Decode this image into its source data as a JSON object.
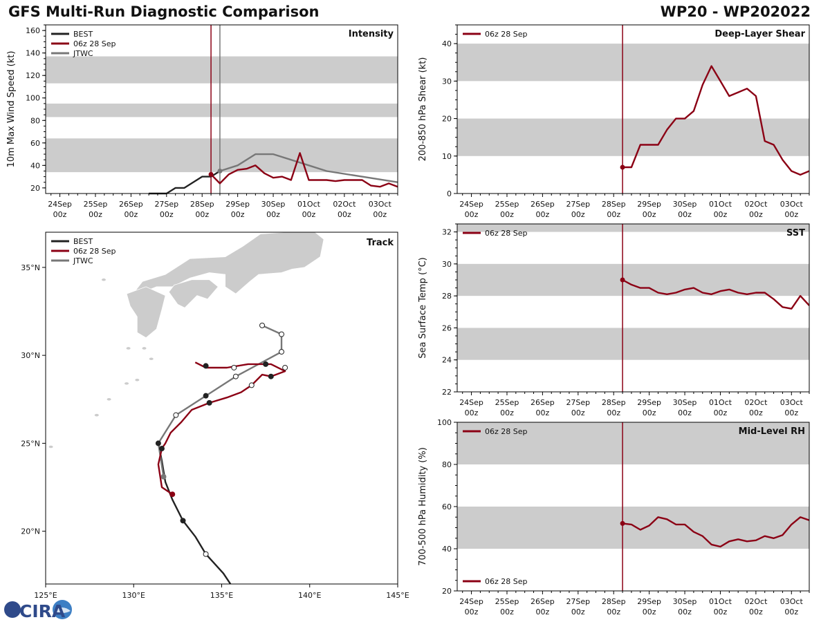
{
  "header": {
    "title": "GFS Multi-Run Diagnostic Comparison",
    "storm_id": "WP20 - WP202022"
  },
  "colors": {
    "best": "#222222",
    "run": "#8b0014",
    "jtwc": "#777777",
    "band": "#cccccc"
  },
  "legend": {
    "best": "BEST",
    "run": "06z 28 Sep",
    "jtwc": "JTWC"
  },
  "logo": {
    "text": "CIRA"
  },
  "time_axis": {
    "ticks": [
      {
        "day": "24Sep",
        "hour": "00z",
        "t": 0
      },
      {
        "day": "25Sep",
        "hour": "00z",
        "t": 1
      },
      {
        "day": "26Sep",
        "hour": "00z",
        "t": 2
      },
      {
        "day": "27Sep",
        "hour": "00z",
        "t": 3
      },
      {
        "day": "28Sep",
        "hour": "00z",
        "t": 4
      },
      {
        "day": "29Sep",
        "hour": "00z",
        "t": 5
      },
      {
        "day": "30Sep",
        "hour": "00z",
        "t": 6
      },
      {
        "day": "01Oct",
        "hour": "00z",
        "t": 7
      },
      {
        "day": "02Oct",
        "hour": "00z",
        "t": 8
      },
      {
        "day": "03Oct",
        "hour": "00z",
        "t": 9
      }
    ],
    "range_days": [
      -0.4,
      9.5
    ],
    "init_time_days": 4.25,
    "jtwc_time_days": 4.5
  },
  "chart_data": [
    {
      "id": "intensity",
      "type": "line",
      "title": "Intensity",
      "ylabel": "10m Max Wind Speed (kt)",
      "ylim": [
        15,
        165
      ],
      "yticks": [
        20,
        40,
        60,
        80,
        100,
        120,
        140,
        160
      ],
      "bands": [
        [
          34,
          64
        ],
        [
          83,
          95
        ],
        [
          113,
          137
        ]
      ],
      "series": [
        {
          "name": "BEST",
          "color_key": "best",
          "x": [
            2.5,
            3.0,
            3.25,
            3.5,
            4.0,
            4.25,
            4.5
          ],
          "y": [
            15,
            15,
            20,
            20,
            30,
            30,
            35
          ]
        },
        {
          "name": "06z 28 Sep",
          "color_key": "run",
          "x": [
            4.25,
            4.5,
            4.75,
            5.0,
            5.25,
            5.5,
            5.75,
            6.0,
            6.25,
            6.5,
            6.75,
            7.0,
            7.25,
            7.5,
            7.75,
            8.0,
            8.25,
            8.5,
            8.75,
            9.0,
            9.25,
            9.5
          ],
          "y": [
            32,
            24,
            32,
            36,
            37,
            40,
            33,
            29,
            30,
            27,
            51,
            27,
            27,
            27,
            26,
            27,
            27,
            27,
            22,
            21,
            24,
            21
          ]
        },
        {
          "name": "JTWC",
          "color_key": "jtwc",
          "x": [
            4.5,
            5.0,
            5.5,
            6.0,
            7.0,
            7.5,
            8.5,
            9.5
          ],
          "y": [
            35,
            40,
            50,
            50,
            40,
            35,
            30,
            25
          ]
        }
      ]
    },
    {
      "id": "track",
      "type": "track_map",
      "title": "Track",
      "lon_range": [
        125,
        145
      ],
      "lat_range": [
        17,
        37
      ],
      "lon_ticks": [
        125,
        130,
        135,
        140,
        145
      ],
      "lat_ticks": [
        20,
        25,
        30,
        35
      ],
      "lon_tick_labels": [
        "125°E",
        "130°E",
        "135°E",
        "140°E",
        "145°E"
      ],
      "lat_tick_labels": [
        "20°N",
        "25°N",
        "30°N",
        "35°N"
      ],
      "series": [
        {
          "name": "BEST",
          "color_key": "best",
          "lon": [
            135.5,
            135.1,
            134.1,
            133.5,
            132.8,
            132.2,
            131.8,
            131.6,
            131.4
          ],
          "lat": [
            17.0,
            17.6,
            18.7,
            19.7,
            20.6,
            21.8,
            22.8,
            24.0,
            25.0
          ],
          "markers_lon": [
            134.1,
            132.8,
            131.4
          ],
          "markers_lat": [
            18.7,
            20.6,
            25.0
          ],
          "markers_fill": [
            "open",
            "filled",
            "filled"
          ]
        },
        {
          "name": "06z 28 Sep",
          "color_key": "run",
          "lon": [
            132.2,
            131.6,
            131.4,
            131.6,
            131.8,
            132.1,
            132.7,
            133.3,
            134.3,
            135.3,
            136.1,
            136.7,
            137.3,
            137.8,
            138.6,
            137.8,
            136.5,
            135.3,
            134.1,
            133.5
          ],
          "lat": [
            22.1,
            22.5,
            23.8,
            24.7,
            25.0,
            25.6,
            26.2,
            26.9,
            27.3,
            27.6,
            27.9,
            28.3,
            28.9,
            28.8,
            29.1,
            29.5,
            29.5,
            29.3,
            29.3,
            29.6
          ],
          "markers_lon": [
            132.2,
            131.6,
            134.3,
            136.7,
            137.8,
            138.6,
            137.5,
            135.7,
            134.1
          ],
          "markers_lat": [
            22.1,
            24.7,
            27.3,
            28.3,
            28.8,
            29.3,
            29.5,
            29.3,
            29.4
          ],
          "markers_fill": [
            "run",
            "filled",
            "filled",
            "open",
            "filled",
            "open",
            "filled",
            "open",
            "filled"
          ]
        },
        {
          "name": "JTWC",
          "color_key": "jtwc",
          "lon": [
            131.7,
            131.4,
            132.4,
            134.1,
            135.8,
            138.4,
            138.4,
            137.3
          ],
          "lat": [
            23.1,
            25.0,
            26.6,
            27.7,
            28.8,
            30.2,
            31.2,
            31.7
          ],
          "markers_lon": [
            131.7,
            132.4,
            134.1,
            135.8,
            138.4,
            138.4,
            137.3
          ],
          "markers_lat": [
            23.1,
            26.6,
            27.7,
            28.8,
            30.2,
            31.2,
            31.7
          ],
          "markers_fill": [
            "jtwc",
            "open",
            "filled",
            "open",
            "open",
            "open",
            "open"
          ]
        }
      ]
    },
    {
      "id": "shear",
      "type": "line",
      "title": "Deep-Layer Shear",
      "ylabel": "200-850 hPa Shear (kt)",
      "ylim": [
        0,
        45
      ],
      "yticks": [
        0,
        10,
        20,
        30,
        40
      ],
      "bands": [
        [
          10,
          20
        ],
        [
          30,
          40
        ]
      ],
      "series": [
        {
          "name": "06z 28 Sep",
          "color_key": "run",
          "x": [
            4.25,
            4.5,
            4.75,
            5.0,
            5.25,
            5.5,
            5.75,
            6.0,
            6.25,
            6.5,
            6.75,
            7.0,
            7.25,
            7.5,
            7.75,
            8.0,
            8.25,
            8.5,
            8.75,
            9.0,
            9.25,
            9.5
          ],
          "y": [
            7,
            7,
            13,
            13,
            13,
            17,
            20,
            20,
            22,
            29,
            34,
            30,
            26,
            27,
            28,
            26,
            14,
            13,
            9,
            6,
            5,
            6
          ]
        }
      ]
    },
    {
      "id": "sst",
      "type": "line",
      "title": "SST",
      "ylabel": "Sea Surface Temp (°C)",
      "ylim": [
        22,
        32.5
      ],
      "yticks": [
        22,
        24,
        26,
        28,
        30,
        32
      ],
      "bands": [
        [
          24,
          26
        ],
        [
          28,
          30
        ],
        [
          32,
          33
        ]
      ],
      "series": [
        {
          "name": "06z 28 Sep",
          "color_key": "run",
          "x": [
            4.25,
            4.5,
            4.75,
            5.0,
            5.25,
            5.5,
            5.75,
            6.0,
            6.25,
            6.5,
            6.75,
            7.0,
            7.25,
            7.5,
            7.75,
            8.0,
            8.25,
            8.5,
            8.75,
            9.0,
            9.25,
            9.5
          ],
          "y": [
            29.0,
            28.7,
            28.5,
            28.5,
            28.2,
            28.1,
            28.2,
            28.4,
            28.5,
            28.2,
            28.1,
            28.3,
            28.4,
            28.2,
            28.1,
            28.2,
            28.2,
            27.8,
            27.3,
            27.2,
            28.0,
            27.4
          ]
        }
      ]
    },
    {
      "id": "rh",
      "type": "line",
      "title": "Mid-Level RH",
      "ylabel": "700-500 hPa Humidity (%)",
      "ylim": [
        20,
        100
      ],
      "yticks": [
        20,
        40,
        60,
        80,
        100
      ],
      "bands": [
        [
          40,
          60
        ],
        [
          80,
          100
        ]
      ],
      "series": [
        {
          "name": "06z 28 Sep",
          "color_key": "run",
          "x": [
            4.25,
            4.5,
            4.75,
            5.0,
            5.25,
            5.5,
            5.75,
            6.0,
            6.25,
            6.5,
            6.75,
            7.0,
            7.25,
            7.5,
            7.75,
            8.0,
            8.25,
            8.5,
            8.75,
            9.0,
            9.25,
            9.5
          ],
          "y": [
            52,
            51.5,
            49,
            51,
            55,
            54,
            51.5,
            51.5,
            48,
            46,
            42,
            41,
            43.5,
            44.5,
            43.5,
            44,
            46,
            45,
            46.5,
            51.5,
            55,
            53.5
          ]
        }
      ]
    }
  ]
}
